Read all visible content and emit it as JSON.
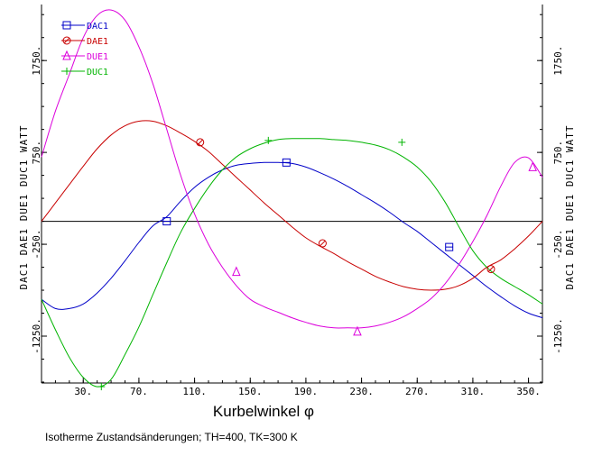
{
  "chart_data": {
    "type": "line",
    "xlabel": "Kurbelwinkel φ",
    "caption": "Isotherme Zustandsänderungen; TH=400, TK=300 K",
    "xlim": [
      0,
      360
    ],
    "ylim": [
      -1760,
      2360
    ],
    "x_ticks": [
      {
        "value": 30,
        "label": "30."
      },
      {
        "value": 70,
        "label": "70."
      },
      {
        "value": 110,
        "label": "110."
      },
      {
        "value": 150,
        "label": "150."
      },
      {
        "value": 190,
        "label": "190."
      },
      {
        "value": 230,
        "label": "230."
      },
      {
        "value": 270,
        "label": "270."
      },
      {
        "value": 310,
        "label": "310."
      },
      {
        "value": 350,
        "label": "350."
      }
    ],
    "y_ticks": [
      {
        "value": 1750,
        "label": "1750."
      },
      {
        "value": 750,
        "label": "750."
      },
      {
        "value": -250,
        "label": "-250."
      },
      {
        "value": -1250,
        "label": "-1250."
      }
    ],
    "left_axis_label": "DAC1 DAE1 DUE1 DUC1 WATT",
    "right_axis_label": "DAC1 DAE1 DUE1 DUC1 WATT",
    "zero_line": 0,
    "series": [
      {
        "name": "DAC1",
        "color": "#0000c8",
        "marker": "square",
        "x": [
          0,
          10,
          20,
          30,
          40,
          50,
          60,
          70,
          80,
          90,
          100,
          110,
          120,
          130,
          140,
          150,
          160,
          170,
          180,
          190,
          200,
          210,
          220,
          230,
          240,
          250,
          260,
          270,
          280,
          290,
          300,
          310,
          320,
          330,
          340,
          350,
          360
        ],
        "y": [
          -850,
          -950,
          -950,
          -900,
          -780,
          -620,
          -430,
          -230,
          -50,
          50,
          220,
          370,
          480,
          560,
          610,
          630,
          640,
          640,
          630,
          590,
          530,
          460,
          380,
          290,
          200,
          100,
          -10,
          -110,
          -230,
          -350,
          -470,
          -590,
          -710,
          -820,
          -920,
          -1000,
          -1050
        ],
        "marker_x": [
          90,
          176,
          293
        ],
        "marker_y": [
          0,
          640,
          -280
        ]
      },
      {
        "name": "DAE1",
        "color": "#c80000",
        "marker": "circle",
        "x": [
          0,
          10,
          20,
          30,
          40,
          50,
          60,
          70,
          80,
          90,
          100,
          110,
          120,
          130,
          140,
          150,
          160,
          170,
          180,
          190,
          200,
          210,
          220,
          230,
          240,
          250,
          260,
          270,
          280,
          290,
          300,
          310,
          320,
          330,
          340,
          350,
          360
        ],
        "y": [
          0,
          200,
          400,
          600,
          790,
          940,
          1040,
          1090,
          1090,
          1040,
          960,
          870,
          760,
          620,
          480,
          340,
          200,
          70,
          -60,
          -180,
          -270,
          -350,
          -440,
          -520,
          -600,
          -660,
          -710,
          -740,
          -750,
          -740,
          -700,
          -620,
          -500,
          -420,
          -300,
          -160,
          0
        ],
        "marker_x": [
          114,
          202,
          323
        ],
        "marker_y": [
          860,
          -240,
          -520
        ]
      },
      {
        "name": "DUE1",
        "color": "#dc00dc",
        "marker": "triangle",
        "x": [
          0,
          10,
          20,
          30,
          40,
          50,
          60,
          70,
          80,
          90,
          100,
          110,
          120,
          130,
          140,
          150,
          160,
          170,
          180,
          190,
          200,
          210,
          220,
          230,
          240,
          250,
          260,
          270,
          280,
          290,
          300,
          310,
          320,
          330,
          340,
          350,
          360
        ],
        "y": [
          700,
          1200,
          1600,
          2000,
          2240,
          2300,
          2190,
          1900,
          1500,
          1000,
          500,
          80,
          -250,
          -500,
          -700,
          -850,
          -930,
          -990,
          -1050,
          -1100,
          -1140,
          -1160,
          -1160,
          -1160,
          -1140,
          -1100,
          -1040,
          -950,
          -840,
          -680,
          -470,
          -220,
          60,
          380,
          640,
          690,
          480
        ],
        "marker_x": [
          140,
          227,
          353
        ],
        "marker_y": [
          -550,
          -1200,
          590
        ]
      },
      {
        "name": "DUC1",
        "color": "#00b400",
        "marker": "plus",
        "x": [
          0,
          10,
          20,
          30,
          40,
          50,
          60,
          70,
          80,
          90,
          100,
          110,
          120,
          130,
          140,
          150,
          160,
          170,
          180,
          190,
          200,
          210,
          220,
          230,
          240,
          250,
          260,
          270,
          280,
          290,
          300,
          310,
          320,
          330,
          340,
          350,
          360
        ],
        "y": [
          -850,
          -1180,
          -1480,
          -1700,
          -1800,
          -1720,
          -1450,
          -1150,
          -800,
          -450,
          -120,
          140,
          370,
          560,
          700,
          790,
          850,
          890,
          900,
          900,
          900,
          890,
          880,
          860,
          830,
          780,
          700,
          590,
          430,
          210,
          -60,
          -320,
          -500,
          -620,
          -710,
          -800,
          -900
        ],
        "marker_x": [
          43,
          163,
          259
        ],
        "marker_y": [
          -1800,
          880,
          860
        ]
      }
    ]
  }
}
